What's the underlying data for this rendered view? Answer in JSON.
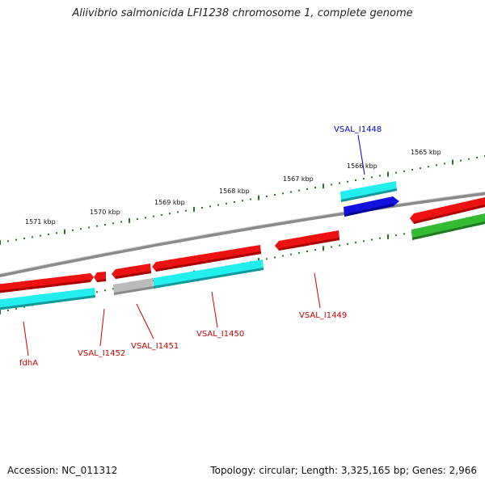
{
  "title": "Aliivibrio salmonicida LFI1238 chromosome 1, complete genome",
  "footer": {
    "accession": "Accession: NC_011312",
    "summary": "Topology: circular; Length: 3,325,165 bp; Genes: 2,966"
  },
  "kbp_ticks": [
    {
      "label": "1571 kbp"
    },
    {
      "label": "1570 kbp"
    },
    {
      "label": "1569 kbp"
    },
    {
      "label": "1568 kbp"
    },
    {
      "label": "1567 kbp"
    },
    {
      "label": "1566 kbp"
    },
    {
      "label": "1565 kbp"
    }
  ],
  "gene_labels": [
    {
      "name": "fdhA"
    },
    {
      "name": "VSAL_I1452"
    },
    {
      "name": "VSAL_I1451"
    },
    {
      "name": "VSAL_I1450"
    },
    {
      "name": "VSAL_I1449"
    },
    {
      "name": "VSAL_I1448"
    }
  ],
  "colors": {
    "backbone": "#8a8a8a",
    "tick": "#1f7a1f",
    "gene_red": "#ee1111",
    "gene_cyan": "#22eeee",
    "gene_blue": "#1111dd",
    "gene_green": "#33bb33",
    "gene_gray": "#aaaaaa",
    "label_red": "#cc0000",
    "label_blue": "#0000cc"
  }
}
